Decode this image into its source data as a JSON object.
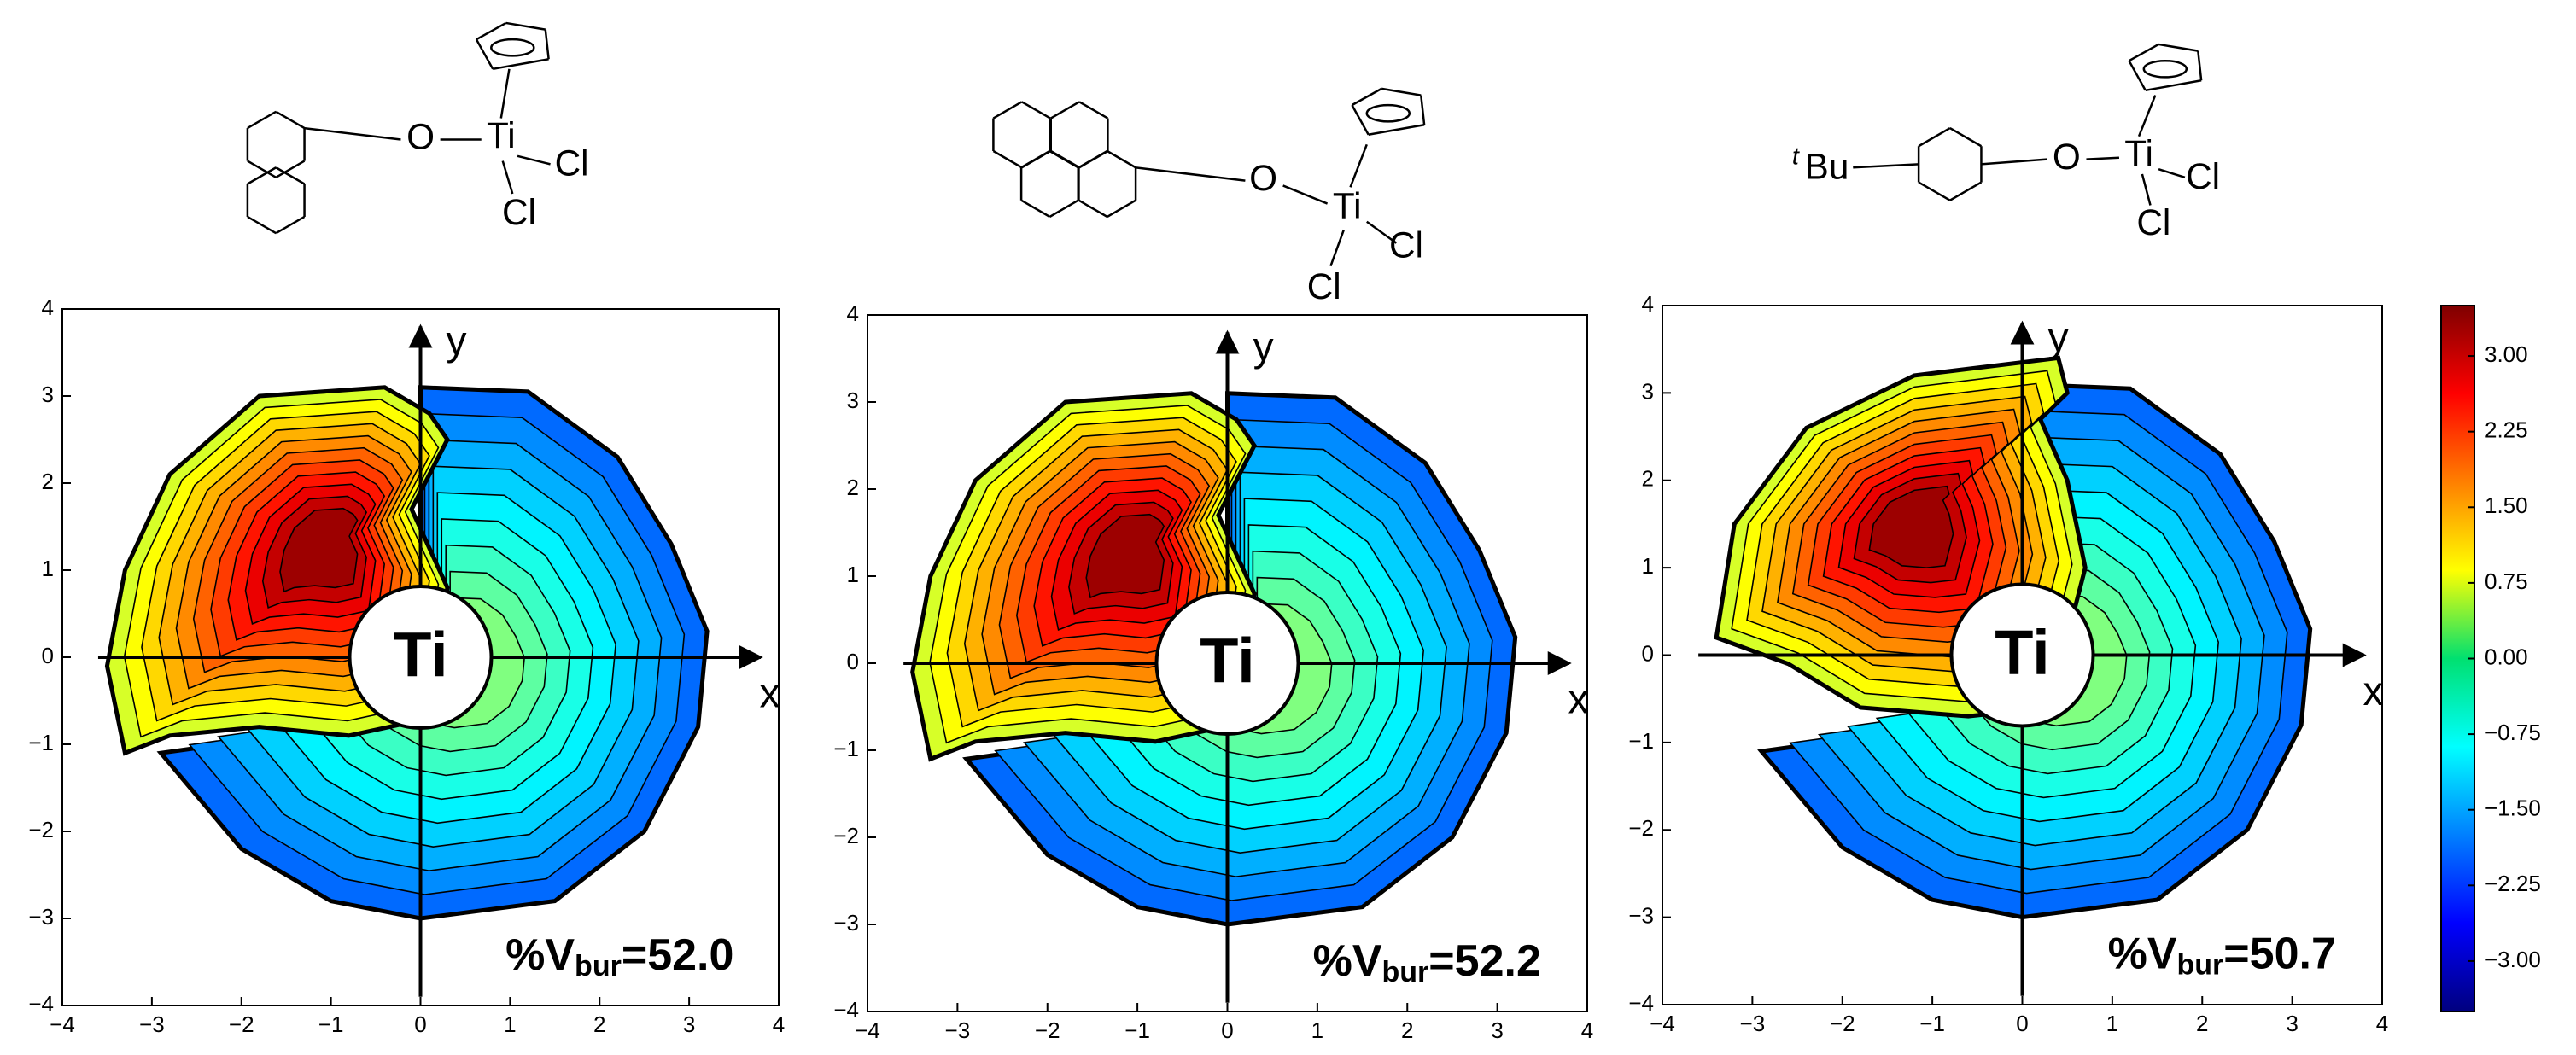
{
  "chart_data": [
    {
      "type": "contour",
      "xlim": [
        -4,
        4
      ],
      "ylim": [
        -4,
        4
      ],
      "xticks": [
        {
          "value": -4,
          "label": "−4"
        },
        {
          "value": -3,
          "label": "−3"
        },
        {
          "value": -2,
          "label": "−2"
        },
        {
          "value": -1,
          "label": "−1"
        },
        0,
        1,
        2,
        3,
        4
      ],
      "yticks": [
        {
          "value": -4,
          "label": "−4"
        },
        {
          "value": -3,
          "label": "−3"
        },
        {
          "value": -2,
          "label": "−2"
        },
        {
          "value": -1,
          "label": "−1"
        },
        0,
        1,
        2,
        3,
        4
      ],
      "x_label": "x",
      "y_label": "y",
      "center_label": "Ti",
      "annotation": [
        "%V",
        "bur",
        "=52.0"
      ],
      "structure_labels": [
        "O",
        "Ti",
        "Cl",
        "Cl"
      ]
    },
    {
      "type": "contour",
      "xlim": [
        -4,
        4
      ],
      "ylim": [
        -4,
        4
      ],
      "xticks": [
        {
          "value": -4,
          "label": "−4"
        },
        {
          "value": -3,
          "label": "−3"
        },
        {
          "value": -2,
          "label": "−2"
        },
        {
          "value": -1,
          "label": "−1"
        },
        0,
        1,
        2,
        3,
        4
      ],
      "yticks": [
        {
          "value": -4,
          "label": "−4"
        },
        {
          "value": -3,
          "label": "−3"
        },
        {
          "value": -2,
          "label": "−2"
        },
        {
          "value": -1,
          "label": "−1"
        },
        0,
        1,
        2,
        3,
        4
      ],
      "x_label": "x",
      "y_label": "y",
      "center_label": "Ti",
      "annotation": [
        "%V",
        "bur",
        "=52.2"
      ],
      "structure_labels": [
        "O",
        "Ti",
        "Cl",
        "Cl"
      ]
    },
    {
      "type": "contour",
      "xlim": [
        -4,
        4
      ],
      "ylim": [
        -4,
        4
      ],
      "xticks": [
        {
          "value": -4,
          "label": "−4"
        },
        {
          "value": -3,
          "label": "−3"
        },
        {
          "value": -2,
          "label": "−2"
        },
        {
          "value": -1,
          "label": "−1"
        },
        0,
        1,
        2,
        3,
        4
      ],
      "yticks": [
        {
          "value": -4,
          "label": "−4"
        },
        {
          "value": -3,
          "label": "−3"
        },
        {
          "value": -2,
          "label": "−2"
        },
        {
          "value": -1,
          "label": "−1"
        },
        0,
        1,
        2,
        3,
        4
      ],
      "x_label": "x",
      "y_label": "y",
      "center_label": "Ti",
      "annotation": [
        "%V",
        "bur",
        "=50.7"
      ],
      "structure_labels": [
        "t",
        "Bu",
        "O",
        "Ti",
        "Cl",
        "Cl"
      ],
      "colorbar": {
        "lim": [
          -3.5,
          3.5
        ],
        "ticks": [
          {
            "value": 3,
            "label": "3.00"
          },
          {
            "value": 2.25,
            "label": "2.25"
          },
          {
            "value": 1.5,
            "label": "1.50"
          },
          {
            "value": 0.75,
            "label": "0.75"
          },
          {
            "value": 0,
            "label": "0.00"
          },
          {
            "value": -0.75,
            "label": "−0.75"
          },
          {
            "value": -1.5,
            "label": "−1.50"
          },
          {
            "value": -2.25,
            "label": "−2.25"
          },
          {
            "value": -3,
            "label": "−3.00"
          }
        ]
      }
    }
  ]
}
